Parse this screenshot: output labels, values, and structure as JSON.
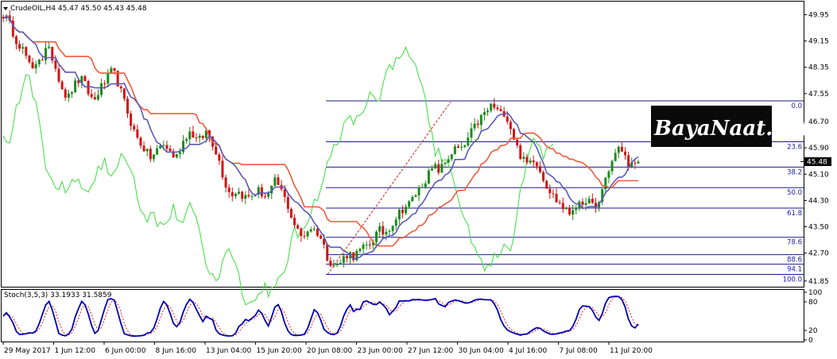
{
  "header": {
    "symbol_line": "CrudeOIL,H4  45.47 45.50 45.43 45.48",
    "stoch_label": "Stoch(3,5,3) 33.1933 31.5859"
  },
  "watermark": {
    "text": "BayaNaat.net"
  },
  "price_axis": {
    "ticks": [
      "49.95",
      "49.15",
      "48.35",
      "47.55",
      "46.70",
      "45.90",
      "45.10",
      "44.30",
      "43.50",
      "42.70",
      "41.85"
    ],
    "current_price": "45.48"
  },
  "stoch_axis": {
    "ticks": [
      "100",
      "80",
      "20",
      "0"
    ]
  },
  "time_axis": {
    "labels": [
      "29 May 2017",
      "1 Jun 12:00",
      "6 Jun 00:00",
      "8 Jun 16:00",
      "13 Jun 04:00",
      "15 Jun 20:00",
      "20 Jun 08:00",
      "23 Jun 00:00",
      "27 Jun 12:00",
      "30 Jun 04:00",
      "4 Jul 16:00",
      "7 Jul 08:00",
      "11 Jul 20:00"
    ]
  },
  "fibonacci": {
    "levels": [
      "0.0",
      "23.6",
      "38.2",
      "50.0",
      "61.8",
      "78.6",
      "88.6",
      "94.1",
      "100.0"
    ],
    "high": 47.33,
    "low": 42.05
  },
  "colors": {
    "bull": "#1e8a1e",
    "bear": "#d11414",
    "kijun": "#f05a3a",
    "tenkan": "#5a58b8",
    "chikou": "#3cdc3c",
    "fib": "#1a1a8c",
    "stoch_main": "#0000b4",
    "stoch_signal": "#e02020",
    "trend": "#d02020",
    "watermark_bg": "#0a0a0a"
  },
  "chart_data": [
    {
      "type": "candlestick",
      "title": "CrudeOIL,H4",
      "ylim": [
        41.7,
        50.3
      ],
      "x_start": "29 May 2017",
      "x_end": "11 Jul 20:00",
      "last": {
        "open": 45.47,
        "high": 45.5,
        "low": 45.43,
        "close": 45.48
      },
      "close_path": [
        49.95,
        49.8,
        49.5,
        49.2,
        49.0,
        48.8,
        48.4,
        48.2,
        48.7,
        48.6,
        48.9,
        48.8,
        48.4,
        48.0,
        47.6,
        47.4,
        47.7,
        47.9,
        48.0,
        47.8,
        47.5,
        47.3,
        47.6,
        47.8,
        48.0,
        48.2,
        48.1,
        47.7,
        47.3,
        46.9,
        46.5,
        46.2,
        46.0,
        45.8,
        45.6,
        45.7,
        45.9,
        46.0,
        45.9,
        45.7,
        45.6,
        45.9,
        46.2,
        46.4,
        46.3,
        46.1,
        46.2,
        46.4,
        46.2,
        45.9,
        45.5,
        45.0,
        44.6,
        44.5,
        44.6,
        44.5,
        44.4,
        44.4,
        44.5,
        44.6,
        44.5,
        44.4,
        44.6,
        44.9,
        44.7,
        44.4,
        44.1,
        43.7,
        43.4,
        43.2,
        43.3,
        43.5,
        43.4,
        43.3,
        43.0,
        42.6,
        42.4,
        42.3,
        42.4,
        42.6,
        42.7,
        42.6,
        42.7,
        42.8,
        42.9,
        43.0,
        43.2,
        43.4,
        43.3,
        43.4,
        43.6,
        43.8,
        44.0,
        44.1,
        44.2,
        44.4,
        44.6,
        44.8,
        45.0,
        45.2,
        45.3,
        45.2,
        45.4,
        45.6,
        45.8,
        45.9,
        45.8,
        46.0,
        46.3,
        46.5,
        46.7,
        46.9,
        47.0,
        47.2,
        47.1,
        46.9,
        47.0,
        46.7,
        46.3,
        45.9,
        45.6,
        45.4,
        45.5,
        45.6,
        45.3,
        45.0,
        44.7,
        44.5,
        44.3,
        44.2,
        44.0,
        43.9,
        44.1,
        44.2,
        44.0,
        44.4,
        44.2,
        44.0,
        44.3,
        44.8,
        45.2,
        45.5,
        45.8,
        45.9,
        45.6,
        45.4,
        45.3,
        45.48
      ]
    },
    {
      "type": "line",
      "title": "Stoch(3,5,3)",
      "ylim": [
        0,
        100
      ],
      "series": [
        {
          "name": "Stoch main",
          "last": 33.1933
        },
        {
          "name": "Stoch signal",
          "last": 31.5859
        }
      ]
    }
  ]
}
